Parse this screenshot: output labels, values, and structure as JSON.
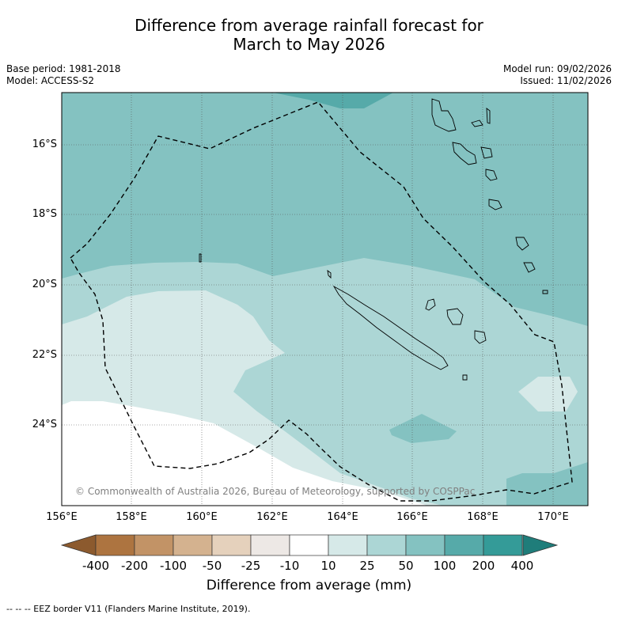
{
  "title_line1": "Difference from average rainfall forecast for",
  "title_line2": "March to May 2026",
  "base_period": "Base period: 1981-2018",
  "model": "Model: ACCESS-S2",
  "model_run": "Model run: 09/02/2026",
  "issued": "Issued: 11/02/2026",
  "credit": "© Commonwealth of Australia 2026, Bureau of Meteorology, supported by COSPPac",
  "lat_labels": [
    "16°S",
    "18°S",
    "20°S",
    "22°S",
    "24°S"
  ],
  "lon_labels": [
    "156°E",
    "158°E",
    "160°E",
    "162°E",
    "164°E",
    "166°E",
    "168°E",
    "170°E"
  ],
  "colorbar": {
    "ticks": [
      "-400",
      "-200",
      "-100",
      "-50",
      "-25",
      "-10",
      "10",
      "25",
      "50",
      "100",
      "200",
      "400"
    ],
    "colors": [
      "#8c5a2e",
      "#ad7440",
      "#c29366",
      "#d4b28f",
      "#e5d1bc",
      "#ede8e5",
      "#ffffff",
      "#d6e9e8",
      "#acd6d5",
      "#84c2c1",
      "#56aaa9",
      "#349b98",
      "#1f7d7a"
    ],
    "title": "Difference from average (mm)"
  },
  "footer": "--  --  -- EEZ border V11 (Flanders Marine Institute, 2019)."
}
